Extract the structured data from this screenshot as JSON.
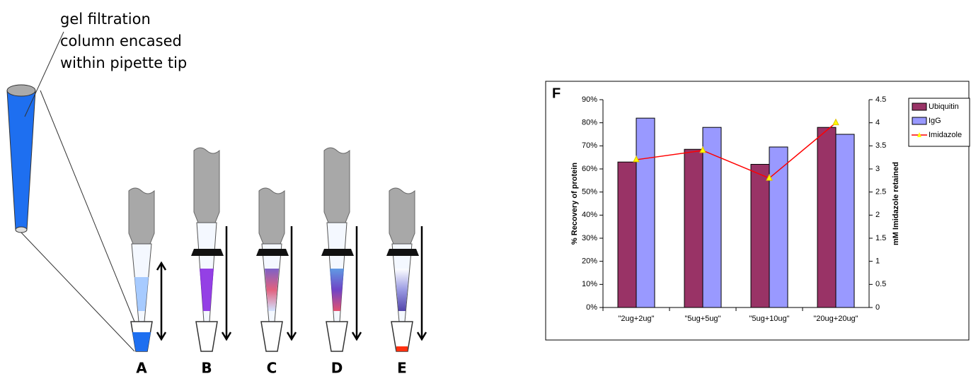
{
  "diagram": {
    "annotation": [
      "gel filtration",
      "column encased",
      "within pipette tip"
    ],
    "labels": [
      "A",
      "B",
      "C",
      "D",
      "E"
    ]
  },
  "chart_data": {
    "type": "bar",
    "panel": "F",
    "categories": [
      "\"2ug+2ug\"",
      "\"5ug+5ug\"",
      "\"5ug+10ug\"",
      "\"20ug+20ug\""
    ],
    "series": [
      {
        "name": "Ubiquitin",
        "color": "#993366",
        "values": [
          63,
          68.5,
          62,
          78
        ]
      },
      {
        "name": "IgG",
        "color": "#9999ff",
        "values": [
          82,
          78,
          69.5,
          75
        ]
      },
      {
        "name": "Imidazole",
        "color": "#ff0000",
        "type": "line",
        "axis": "y2",
        "values": [
          3.2,
          3.4,
          2.8,
          4.0
        ]
      }
    ],
    "ylabel": "% Recovery of protein",
    "y2label": "mM Imidazole retained",
    "ylim": [
      0,
      90
    ],
    "yticks": [
      {
        "value": 0,
        "label": "0%"
      },
      {
        "value": 10,
        "label": "10%"
      },
      {
        "value": 20,
        "label": "20%"
      },
      {
        "value": 30,
        "label": "30%"
      },
      {
        "value": 40,
        "label": "40%"
      },
      {
        "value": 50,
        "label": "50%"
      },
      {
        "value": 60,
        "label": "60%"
      },
      {
        "value": 70,
        "label": "70%"
      },
      {
        "value": 80,
        "label": "80%"
      },
      {
        "value": 90,
        "label": "90%"
      }
    ],
    "y2lim": [
      0,
      4.5
    ],
    "y2ticks": [
      0,
      0.5,
      1,
      1.5,
      2,
      2.5,
      3,
      3.5,
      4,
      4.5
    ],
    "legend": "right"
  }
}
